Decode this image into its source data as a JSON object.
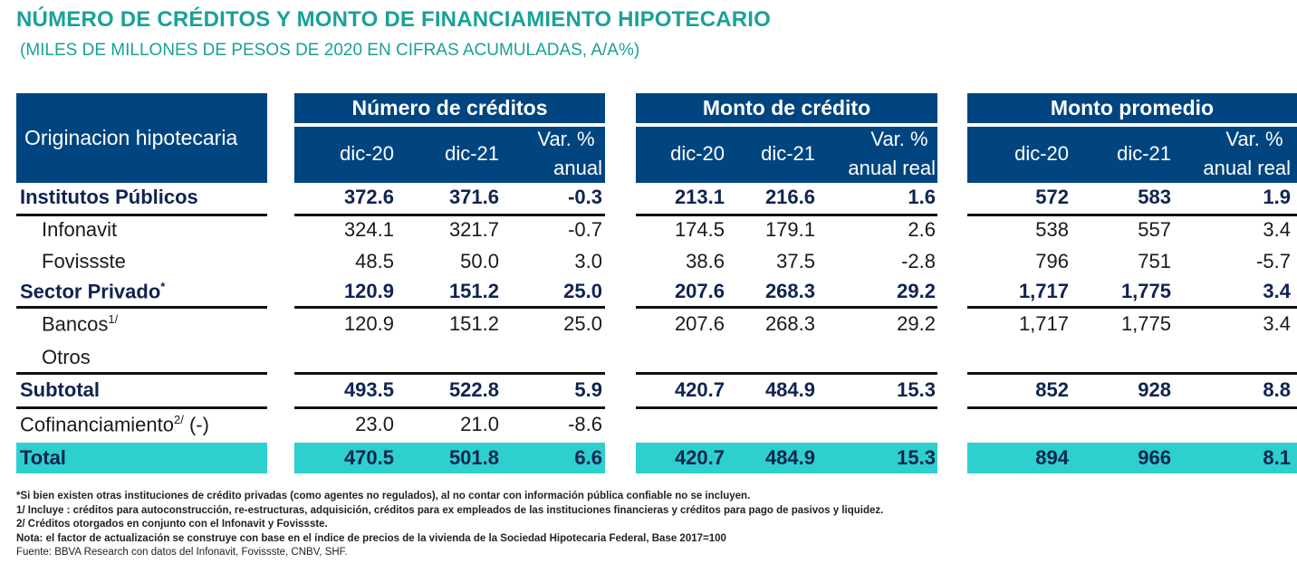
{
  "title": "NÚMERO DE CRÉDITOS Y MONTO DE FINANCIAMIENTO HIPOTECARIO",
  "subtitle": "(MILES DE MILLONES DE PESOS DE 2020 EN CIFRAS ACUMULADAS,  A/A%)",
  "header": {
    "row_label": "Originacion hipotecaria",
    "groups": [
      {
        "label": "Número de créditos",
        "cols": [
          "dic-20",
          "dic-21",
          "Var. %",
          "anual"
        ]
      },
      {
        "label": "Monto de crédito",
        "cols": [
          "dic-20",
          "dic-21",
          "Var. %",
          "anual real"
        ]
      },
      {
        "label": "Monto promedio",
        "cols": [
          "dic-20",
          "dic-21",
          "Var. %",
          "anual real"
        ]
      }
    ]
  },
  "rows": [
    {
      "label": "Institutos Públicos",
      "sup": "",
      "suffix": "",
      "bold": true,
      "indent": false,
      "values": [
        "372.6",
        "371.6",
        "-0.3",
        "213.1",
        "216.6",
        "1.6",
        "572",
        "583",
        "1.9"
      ],
      "line_after": true
    },
    {
      "label": "Infonavit",
      "sup": "",
      "suffix": "",
      "bold": false,
      "indent": true,
      "values": [
        "324.1",
        "321.7",
        "-0.7",
        "174.5",
        "179.1",
        "2.6",
        "538",
        "557",
        "3.4"
      ]
    },
    {
      "label": "Fovissste",
      "sup": "",
      "suffix": "",
      "bold": false,
      "indent": true,
      "values": [
        "48.5",
        "50.0",
        "3.0",
        "38.6",
        "37.5",
        "-2.8",
        "796",
        "751",
        "-5.7"
      ]
    },
    {
      "label": "Sector Privado",
      "sup": "*",
      "suffix": "",
      "bold": true,
      "indent": false,
      "values": [
        "120.9",
        "151.2",
        "25.0",
        "207.6",
        "268.3",
        "29.2",
        "1,717",
        "1,775",
        "3.4"
      ],
      "line_after": true
    },
    {
      "label": "Bancos",
      "sup": "1/",
      "suffix": "",
      "bold": false,
      "indent": true,
      "values": [
        "120.9",
        "151.2",
        "25.0",
        "207.6",
        "268.3",
        "29.2",
        "1,717",
        "1,775",
        "3.4"
      ]
    },
    {
      "label": "Otros",
      "sup": "",
      "suffix": "",
      "bold": false,
      "indent": true,
      "values": [
        "",
        "",
        "",
        "",
        "",
        "",
        "",
        "",
        ""
      ],
      "line_after": true
    },
    {
      "label": "Subtotal",
      "sup": "",
      "suffix": "",
      "bold": true,
      "indent": false,
      "values": [
        "493.5",
        "522.8",
        "5.9",
        "420.7",
        "484.9",
        "15.3",
        "852",
        "928",
        "8.8"
      ],
      "line_after": true
    },
    {
      "label": "Cofinanciamiento",
      "sup": "2/",
      "suffix": " (-)",
      "bold": false,
      "indent": false,
      "values": [
        "23.0",
        "21.0",
        "-8.6",
        "",
        "",
        "",
        "",
        "",
        ""
      ]
    },
    {
      "label": "Total",
      "sup": "",
      "suffix": "",
      "bold": true,
      "indent": false,
      "band": true,
      "values": [
        "470.5",
        "501.8",
        "6.6",
        "420.7",
        "484.9",
        "15.3",
        "894",
        "966",
        "8.1"
      ]
    }
  ],
  "notes": [
    "*Si bien existen otras instituciones de crédito privadas (como agentes no regulados), al no contar con información pública confiable no se incluyen.",
    "1/ Incluye : créditos para autoconstrucción, re-estructuras, adquisición, créditos para ex empleados de las instituciones financieras y créditos para pago de pasivos y liquidez.",
    "2/ Créditos otorgados en conjunto con el Infonavit y Fovissste.",
    "Nota: el factor de actualización se construye con base en el índice de precios de la vivienda de la Sociedad Hipotecaria Federal, Base 2017=100",
    "Fuente: BBVA Research con datos del Infonavit, Fovissste, CNBV, SHF."
  ],
  "colors": {
    "header": "#00457f",
    "title": "#1aa197",
    "total_band": "#2dcfcf"
  }
}
